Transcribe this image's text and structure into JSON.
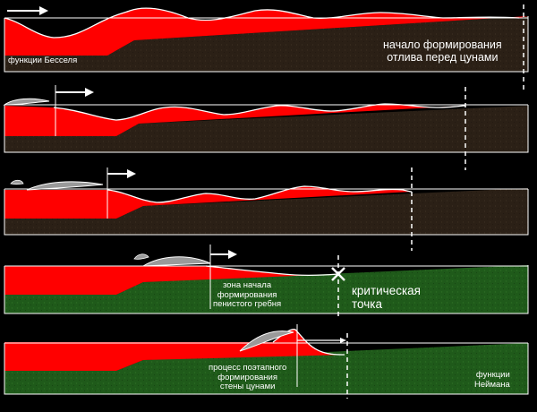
{
  "labels": {
    "bessel": "функции Бесселя",
    "ebb_line1": "начало формирования",
    "ebb_line2": "отлива перед цунами",
    "foam_line1": "зона начала",
    "foam_line2": "формирования",
    "foam_line3": "пенистого гребня",
    "critical_line1": "критическая",
    "critical_line2": "точка",
    "stepwise_line1": "процесс поэтапного",
    "stepwise_line2": "формирования",
    "stepwise_line3": "стены цунами",
    "neumann_line1": "функции",
    "neumann_line2": "Неймана"
  },
  "colors": {
    "background": "#000000",
    "water": "#ff0000",
    "seabed_dark": "#2b2016",
    "seabed_green": "#1f5a1a",
    "outline": "#ffffff",
    "foam": "#9a9a9a"
  },
  "icons": [
    "arrow-right-icon",
    "wave-crest-icon",
    "critical-point-icon"
  ]
}
